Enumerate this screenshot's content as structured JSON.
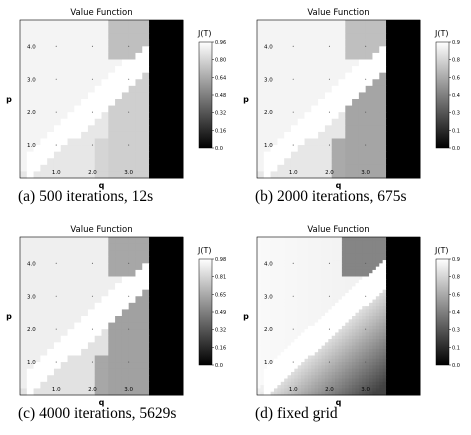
{
  "chart_data": [
    {
      "type": "heatmap",
      "title": "Value Function",
      "xlabel": "q",
      "ylabel": "p",
      "x_ticks": [
        "1.0",
        "2.0",
        "3.0"
      ],
      "y_ticks": [
        "1.0",
        "2.0",
        "3.0",
        "4.0"
      ],
      "x_range": [
        0,
        4.5
      ],
      "y_range": [
        0,
        4.8
      ],
      "colorbar_label": "J(T)",
      "colorbar_ticks": [
        "0.0",
        "0.16",
        "0.32",
        "0.48",
        "0.64",
        "0.80",
        "0.96"
      ],
      "colorbar_range": [
        0,
        0.96
      ],
      "caption": "(a) 500 iterations, 12s",
      "regions": {
        "upper_left_value": 0.92,
        "upper_right_value": 0.72,
        "band_value": 0.99,
        "lower_left_value": 0.87,
        "lower_right_value": 0.78,
        "black_strip_value": 0.0
      },
      "smooth": false
    },
    {
      "type": "heatmap",
      "title": "Value Function",
      "xlabel": "q",
      "ylabel": "p",
      "x_ticks": [
        "1.0",
        "2.0",
        "3.0"
      ],
      "y_ticks": [
        "1.0",
        "2.0",
        "3.0",
        "4.0"
      ],
      "x_range": [
        0,
        4.5
      ],
      "y_range": [
        0,
        4.8
      ],
      "colorbar_label": "J(T)",
      "colorbar_ticks": [
        "0.0",
        "0.1",
        "0.3",
        "0.4",
        "0.6",
        "0.8",
        "0.9"
      ],
      "colorbar_range": [
        0,
        0.96
      ],
      "caption": "(b) 2000 iterations, 675s",
      "regions": {
        "upper_left_value": 0.92,
        "upper_right_value": 0.72,
        "band_value": 0.99,
        "lower_left_value": 0.87,
        "lower_right_value": 0.62,
        "black_strip_value": 0.0
      },
      "smooth": false
    },
    {
      "type": "heatmap",
      "title": "Value Function",
      "xlabel": "q",
      "ylabel": "p",
      "x_ticks": [
        "1.0",
        "2.0",
        "3.0"
      ],
      "y_ticks": [
        "1.0",
        "2.0",
        "3.0",
        "4.0"
      ],
      "x_range": [
        0,
        4.5
      ],
      "y_range": [
        0,
        4.8
      ],
      "colorbar_label": "J(T)",
      "colorbar_ticks": [
        "0.0",
        "0.16",
        "0.32",
        "0.49",
        "0.65",
        "0.81",
        "0.98"
      ],
      "colorbar_range": [
        0,
        0.98
      ],
      "caption": "(c) 4000 iterations, 5629s",
      "regions": {
        "upper_left_value": 0.92,
        "upper_right_value": 0.64,
        "band_value": 0.99,
        "lower_left_value": 0.87,
        "lower_right_value": 0.62,
        "black_strip_value": 0.0
      },
      "smooth": false
    },
    {
      "type": "heatmap",
      "title": "Value Function",
      "xlabel": "q",
      "ylabel": "p",
      "x_ticks": [
        "1.0",
        "2.0",
        "3.0"
      ],
      "y_ticks": [
        "1.0",
        "2.0",
        "3.0",
        "4.0"
      ],
      "x_range": [
        0,
        4.5
      ],
      "y_range": [
        0,
        4.8
      ],
      "colorbar_label": "J(T)",
      "colorbar_ticks": [
        "0.0",
        "0.1",
        "0.3",
        "0.4",
        "0.6",
        "0.8",
        "0.9"
      ],
      "colorbar_range": [
        0,
        0.96
      ],
      "caption": "(d) fixed grid",
      "regions": {
        "upper_left_value": 0.9,
        "upper_right_value": 0.5,
        "band_value": 0.99,
        "lower_left_value": 0.9,
        "lower_right_value": 0.3,
        "black_strip_value": 0.0
      },
      "smooth": true
    }
  ]
}
